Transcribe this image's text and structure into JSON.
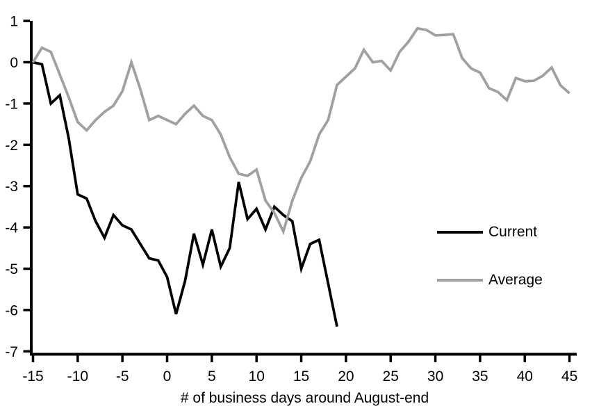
{
  "chart_data": {
    "type": "line",
    "xlabel": "# of business days around August-end",
    "ylabel": "",
    "xlim": [
      -15,
      45
    ],
    "ylim": [
      -7,
      1
    ],
    "x_ticks": [
      -15,
      -10,
      -5,
      0,
      5,
      10,
      15,
      20,
      25,
      30,
      35,
      40,
      45
    ],
    "y_ticks": [
      1,
      0,
      -1,
      -2,
      -3,
      -4,
      -5,
      -6,
      -7
    ],
    "grid": false,
    "legend_position": "right-middle",
    "axis_color": "#000000",
    "background_color": "#ffffff",
    "series": [
      {
        "name": "Current",
        "color": "#000000",
        "x": [
          -15,
          -14,
          -13,
          -12,
          -11,
          -10,
          -9,
          -8,
          -7,
          -6,
          -5,
          -4,
          -3,
          -2,
          -1,
          0,
          1,
          2,
          3,
          4,
          5,
          6,
          7,
          8,
          9,
          10,
          11,
          12,
          13,
          14,
          15,
          16,
          17,
          18,
          19
        ],
        "values": [
          0,
          -0.05,
          -1.0,
          -0.8,
          -1.85,
          -3.2,
          -3.3,
          -3.85,
          -4.25,
          -3.7,
          -3.95,
          -4.05,
          -4.4,
          -4.75,
          -4.8,
          -5.2,
          -6.1,
          -5.3,
          -4.15,
          -4.9,
          -4.05,
          -4.95,
          -4.5,
          -2.9,
          -3.8,
          -3.55,
          -4.05,
          -3.5,
          -3.7,
          -3.85,
          -5.0,
          -4.4,
          -4.3,
          -5.35,
          -6.4
        ]
      },
      {
        "name": "Average",
        "color": "#a0a0a0",
        "x": [
          -15,
          -14,
          -13,
          -12,
          -11,
          -10,
          -9,
          -8,
          -7,
          -6,
          -5,
          -4,
          -3,
          -2,
          -1,
          0,
          1,
          2,
          3,
          4,
          5,
          6,
          7,
          8,
          9,
          10,
          11,
          12,
          13,
          14,
          15,
          16,
          17,
          18,
          19,
          20,
          21,
          22,
          23,
          24,
          25,
          26,
          27,
          28,
          29,
          30,
          31,
          32,
          33,
          34,
          35,
          36,
          37,
          38,
          39,
          40,
          41,
          42,
          43,
          44,
          45
        ],
        "values": [
          0,
          0.35,
          0.25,
          -0.3,
          -0.85,
          -1.45,
          -1.65,
          -1.4,
          -1.2,
          -1.05,
          -0.7,
          0.0,
          -0.65,
          -1.4,
          -1.3,
          -1.4,
          -1.5,
          -1.25,
          -1.05,
          -1.3,
          -1.4,
          -1.75,
          -2.3,
          -2.7,
          -2.75,
          -2.6,
          -3.35,
          -3.65,
          -4.1,
          -3.35,
          -2.8,
          -2.4,
          -1.75,
          -1.4,
          -0.55,
          -0.35,
          -0.15,
          0.3,
          0.0,
          0.03,
          -0.2,
          0.25,
          0.5,
          0.82,
          0.78,
          0.65,
          0.66,
          0.68,
          0.1,
          -0.15,
          -0.25,
          -0.63,
          -0.72,
          -0.92,
          -0.38,
          -0.46,
          -0.45,
          -0.33,
          -0.13,
          -0.56,
          -0.75
        ]
      }
    ]
  },
  "legend": {
    "items": [
      {
        "label": "Current",
        "color": "#000000"
      },
      {
        "label": "Average",
        "color": "#a0a0a0"
      }
    ]
  }
}
